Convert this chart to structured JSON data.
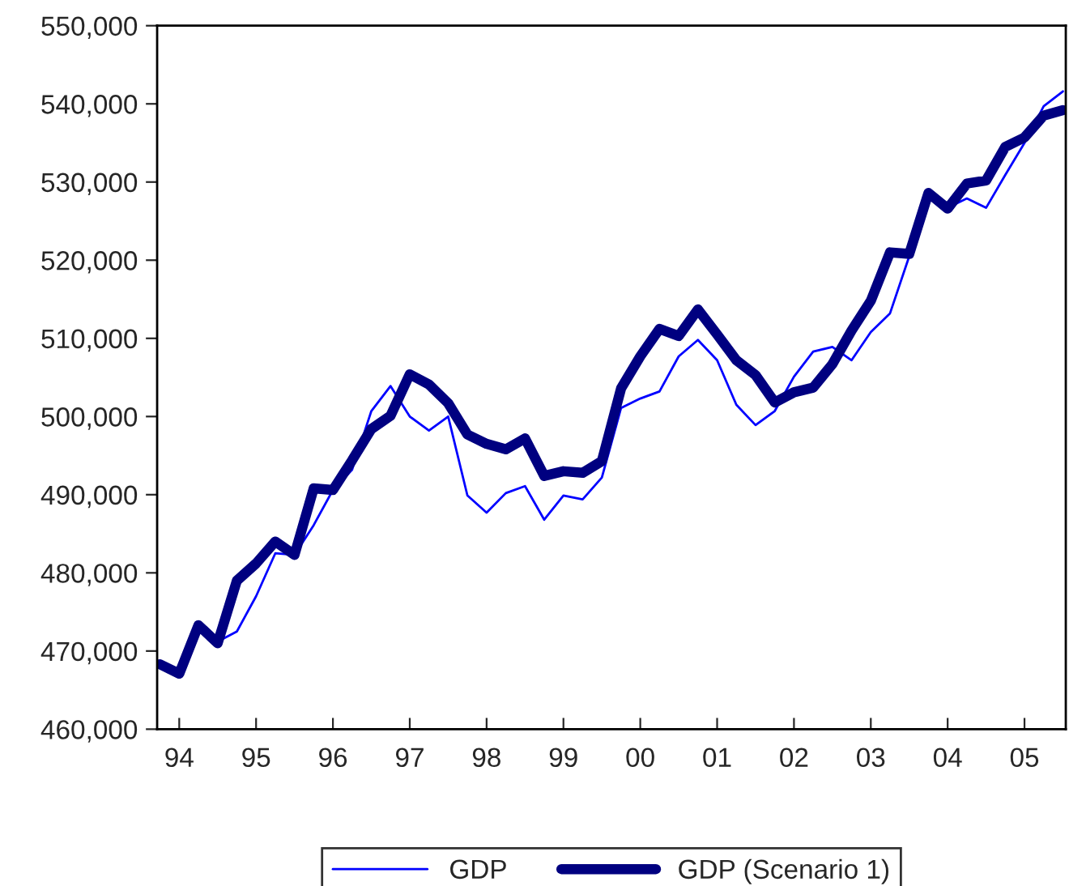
{
  "chart_data": {
    "type": "line",
    "categories": [
      null,
      "94",
      null,
      null,
      null,
      "95",
      null,
      null,
      null,
      "96",
      null,
      null,
      null,
      "97",
      null,
      null,
      null,
      "98",
      null,
      null,
      null,
      "99",
      null,
      null,
      null,
      "00",
      null,
      null,
      null,
      "01",
      null,
      null,
      null,
      "02",
      null,
      null,
      null,
      "03",
      null,
      null,
      null,
      "04",
      null,
      null,
      null,
      "05",
      null,
      null
    ],
    "series": [
      {
        "name": "GDP",
        "color": "#0000ff",
        "values": [
          null,
          null,
          473300,
          471200,
          472500,
          477000,
          482500,
          482300,
          486100,
          490600,
          493200,
          500700,
          503900,
          500000,
          498200,
          500000,
          489900,
          487700,
          490200,
          491100,
          486800,
          489900,
          489400,
          492200,
          501100,
          502300,
          503200,
          507700,
          509800,
          507200,
          501500,
          498900,
          500700,
          505100,
          508300,
          508900,
          507200,
          510800,
          513200,
          520500,
          527900,
          526700,
          527900,
          526700,
          530900,
          535000,
          539700,
          541600
        ]
      },
      {
        "name": "GDP (Scenario 1)",
        "color": "#000080",
        "values": [
          468300,
          467100,
          473300,
          471000,
          479000,
          481200,
          484000,
          482300,
          490800,
          490600,
          494400,
          498400,
          500100,
          505400,
          504100,
          501700,
          497700,
          496500,
          495800,
          497200,
          492400,
          493000,
          492800,
          494300,
          503600,
          507700,
          511200,
          510300,
          513700,
          510500,
          507200,
          505300,
          501800,
          503100,
          503700,
          506700,
          511000,
          514800,
          521000,
          520800,
          528600,
          526600,
          529800,
          530200,
          534500,
          535700,
          538500,
          539200
        ]
      }
    ],
    "ylim": [
      460000,
      550000
    ],
    "yticks": [
      {
        "value": 460000,
        "label": "460,000"
      },
      {
        "value": 470000,
        "label": "470,000"
      },
      {
        "value": 480000,
        "label": "480,000"
      },
      {
        "value": 490000,
        "label": "490,000"
      },
      {
        "value": 500000,
        "label": "500,000"
      },
      {
        "value": 510000,
        "label": "510,000"
      },
      {
        "value": 520000,
        "label": "520,000"
      },
      {
        "value": 530000,
        "label": "530,000"
      },
      {
        "value": 540000,
        "label": "540,000"
      },
      {
        "value": 550000,
        "label": "550,000"
      }
    ],
    "grid": false,
    "legend": "bottom",
    "marker": "none",
    "line_style": "solid"
  }
}
